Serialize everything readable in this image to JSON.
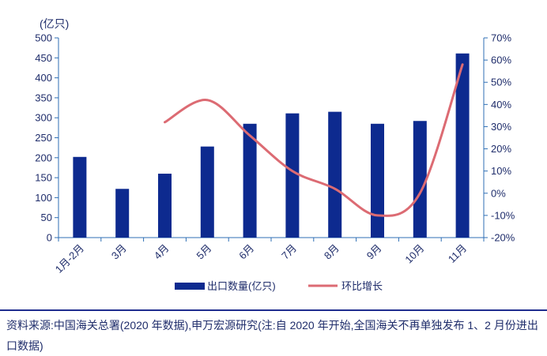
{
  "chart_data": {
    "type": "bar",
    "unit_label": "(亿只)",
    "categories": [
      "1月-2月",
      "3月",
      "4月",
      "5月",
      "6月",
      "7月",
      "8月",
      "9月",
      "10月",
      "11月"
    ],
    "y_left": {
      "min": 0,
      "max": 500,
      "step": 50,
      "ticks": [
        "0",
        "50",
        "100",
        "150",
        "200",
        "250",
        "300",
        "350",
        "400",
        "450",
        "500"
      ]
    },
    "y_right": {
      "min": -20,
      "max": 70,
      "step": 10,
      "ticks": [
        "-20%",
        "-10%",
        "0%",
        "10%",
        "20%",
        "30%",
        "40%",
        "50%",
        "60%",
        "70%"
      ]
    },
    "series": [
      {
        "name": "出口数量(亿只)",
        "kind": "bar",
        "axis": "left",
        "color": "#0d2a8f",
        "values": [
          202,
          122,
          160,
          228,
          285,
          311,
          315,
          285,
          292,
          461
        ]
      },
      {
        "name": "环比增长",
        "kind": "line",
        "axis": "right",
        "color": "#dc6b73",
        "smooth": true,
        "values": [
          null,
          null,
          32,
          42,
          26,
          10,
          2,
          -10,
          0,
          58
        ]
      }
    ],
    "legend": {
      "position": "bottom",
      "items": [
        "出口数量(亿只)",
        "环比增长"
      ]
    },
    "grid": false
  },
  "source_note": "资料来源:中国海关总署(2020 年数据),申万宏源研究(注:自 2020 年开始,全国海关不再单独发布 1、2 月份进出口数据)"
}
